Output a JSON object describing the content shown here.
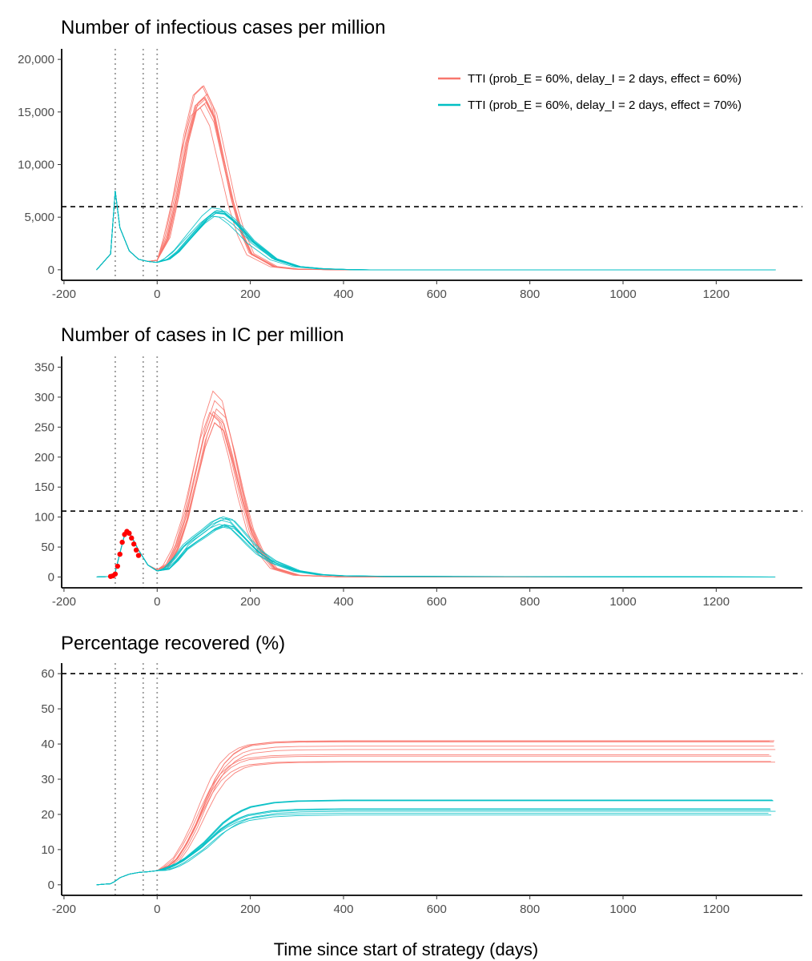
{
  "chart_data": [
    {
      "type": "line",
      "title": "Number of infectious cases per million",
      "xlim": [
        -205,
        1385
      ],
      "ylim": [
        -1000,
        21000
      ],
      "x_ticks": [
        -200,
        0,
        200,
        400,
        600,
        800,
        1000,
        1200
      ],
      "x_tick_labels": [
        "-200",
        "0",
        "200",
        "400",
        "600",
        "800",
        "1000",
        "1200"
      ],
      "y_ticks": [
        0,
        5000,
        10000,
        15000,
        20000
      ],
      "y_tick_labels": [
        "0",
        "5,000",
        "10,000",
        "15,000",
        "20,000"
      ],
      "vlines": [
        -90,
        -30,
        0
      ],
      "hline": 6000,
      "legend": {
        "position": "top-right",
        "entries": [
          {
            "label": "TTI (prob_E = 60%, delay_I = 2 days, effect = 60%)",
            "color": "#F8766D"
          },
          {
            "label": "TTI (prob_E = 60%, delay_I = 2 days, effect = 70%)",
            "color": "#00BFC4"
          }
        ]
      },
      "series": [
        {
          "color": "#F8766D",
          "x": [
            -130,
            -100,
            -90,
            -80,
            -60,
            -40,
            -20,
            0,
            20,
            40,
            60,
            80,
            100,
            120,
            140,
            160,
            180,
            200,
            250,
            300,
            400,
            1320
          ],
          "values": [
            0,
            1500,
            7500,
            4000,
            1800,
            1000,
            800,
            900,
            3000,
            7000,
            12000,
            15500,
            16300,
            14500,
            10500,
            6500,
            3500,
            1500,
            300,
            50,
            0,
            0
          ]
        },
        {
          "color": "#00BFC4",
          "x": [
            -130,
            -100,
            -90,
            -80,
            -60,
            -40,
            -20,
            0,
            20,
            40,
            60,
            80,
            100,
            120,
            140,
            160,
            180,
            200,
            250,
            300,
            350,
            400,
            450,
            1320
          ],
          "values": [
            0,
            1500,
            7500,
            4000,
            1800,
            1000,
            800,
            700,
            1000,
            1700,
            2700,
            3700,
            4700,
            5400,
            5300,
            4600,
            3700,
            2700,
            1000,
            300,
            100,
            30,
            0,
            0
          ]
        }
      ]
    },
    {
      "type": "line",
      "title": "Number of cases in IC per million",
      "xlim": [
        -205,
        1385
      ],
      "ylim": [
        -18,
        368
      ],
      "x_ticks": [
        -200,
        0,
        200,
        400,
        600,
        800,
        1000,
        1200
      ],
      "x_tick_labels": [
        "-200",
        "0",
        "200",
        "400",
        "600",
        "800",
        "1000",
        "1200"
      ],
      "y_ticks": [
        0,
        50,
        100,
        150,
        200,
        250,
        300,
        350
      ],
      "y_tick_labels": [
        "0",
        "50",
        "100",
        "150",
        "200",
        "250",
        "300",
        "350"
      ],
      "vlines": [
        -90,
        -30,
        0
      ],
      "hline": 110,
      "observed": {
        "color": "#FF0000",
        "x": [
          -100,
          -95,
          -90,
          -85,
          -80,
          -75,
          -70,
          -65,
          -60,
          -55,
          -50,
          -45,
          -40
        ],
        "values": [
          1,
          2,
          5,
          18,
          38,
          58,
          71,
          76,
          73,
          65,
          55,
          45,
          36
        ]
      },
      "series": [
        {
          "color": "#F8766D",
          "x": [
            -130,
            -100,
            -90,
            -80,
            -70,
            -60,
            -40,
            -20,
            0,
            20,
            40,
            60,
            80,
            100,
            120,
            140,
            160,
            180,
            200,
            220,
            250,
            300,
            400,
            1320
          ],
          "values": [
            0,
            1,
            8,
            40,
            70,
            75,
            45,
            20,
            12,
            20,
            50,
            100,
            170,
            240,
            285,
            270,
            210,
            140,
            80,
            45,
            15,
            3,
            0,
            0
          ]
        },
        {
          "color": "#00BFC4",
          "x": [
            -130,
            -100,
            -90,
            -80,
            -70,
            -60,
            -40,
            -20,
            0,
            20,
            40,
            60,
            80,
            100,
            120,
            140,
            160,
            180,
            200,
            220,
            250,
            300,
            350,
            400,
            500,
            1320
          ],
          "values": [
            0,
            1,
            8,
            40,
            70,
            75,
            45,
            20,
            10,
            14,
            30,
            50,
            62,
            73,
            85,
            92,
            88,
            72,
            55,
            40,
            25,
            10,
            4,
            2,
            1,
            0
          ]
        }
      ]
    },
    {
      "type": "line",
      "title": "Percentage recovered (%)",
      "xlim": [
        -205,
        1385
      ],
      "ylim": [
        -3,
        63
      ],
      "x_ticks": [
        -200,
        0,
        200,
        400,
        600,
        800,
        1000,
        1200
      ],
      "x_tick_labels": [
        "-200",
        "0",
        "200",
        "400",
        "600",
        "800",
        "1000",
        "1200"
      ],
      "y_ticks": [
        0,
        10,
        20,
        30,
        40,
        50,
        60
      ],
      "y_tick_labels": [
        "0",
        "10",
        "20",
        "30",
        "40",
        "50",
        "60"
      ],
      "vlines": [
        -90,
        -30,
        0
      ],
      "hline": 60,
      "series": [
        {
          "color": "#F8766D",
          "x": [
            -130,
            -100,
            -90,
            -80,
            -60,
            -40,
            -20,
            0,
            20,
            40,
            60,
            80,
            100,
            120,
            140,
            160,
            180,
            200,
            250,
            300,
            400,
            1320
          ],
          "values": [
            0,
            0.3,
            1,
            2,
            3,
            3.5,
            3.7,
            4,
            5,
            7,
            11,
            16,
            22,
            27.5,
            31.5,
            34,
            35.5,
            36.3,
            37,
            37.2,
            37.3,
            37.3
          ]
        },
        {
          "color": "#00BFC4",
          "x": [
            -130,
            -100,
            -90,
            -80,
            -60,
            -40,
            -20,
            0,
            20,
            40,
            60,
            80,
            100,
            120,
            140,
            160,
            180,
            200,
            250,
            300,
            400,
            1320
          ],
          "values": [
            0,
            0.3,
            1,
            2,
            3,
            3.5,
            3.7,
            4,
            4.5,
            5.5,
            7,
            9,
            11,
            13.5,
            16,
            17.8,
            19.2,
            20.2,
            21.3,
            21.7,
            21.9,
            21.9
          ]
        }
      ]
    }
  ],
  "x_axis_title": "Time since start of strategy (days)"
}
